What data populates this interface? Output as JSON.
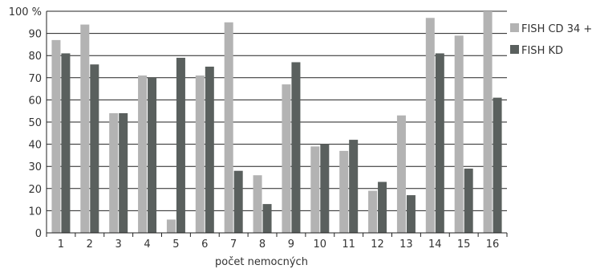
{
  "chart_data": {
    "type": "bar",
    "categories": [
      "1",
      "2",
      "3",
      "4",
      "5",
      "6",
      "7",
      "8",
      "9",
      "10",
      "11",
      "12",
      "13",
      "14",
      "15",
      "16"
    ],
    "series": [
      {
        "name": "FISH CD 34 +",
        "color": "#b3b3b3",
        "values": [
          87,
          94,
          54,
          71,
          6,
          71,
          95,
          26,
          67,
          39,
          37,
          19,
          53,
          97,
          89,
          100
        ]
      },
      {
        "name": "FISH KD",
        "color": "#5a605e",
        "values": [
          81,
          76,
          54,
          70,
          79,
          75,
          28,
          13,
          77,
          40,
          42,
          23,
          17,
          81,
          29,
          61
        ]
      }
    ],
    "xlabel": "počet nemocných",
    "ylabel": "",
    "ylim": [
      0,
      100
    ],
    "yticks": [
      0,
      10,
      20,
      30,
      40,
      50,
      60,
      70,
      80,
      90,
      100
    ],
    "ytick_labels": [
      "0",
      "10",
      "20",
      "30",
      "40",
      "50",
      "60",
      "70",
      "80",
      "90",
      "100 %"
    ],
    "grid": true,
    "legend_position": "right"
  }
}
